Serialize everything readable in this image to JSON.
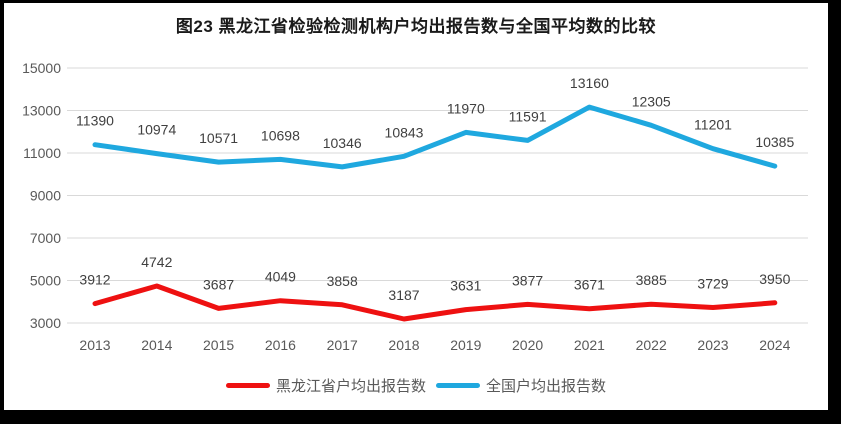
{
  "chart_data": {
    "type": "line",
    "title": "图23 黑龙江省检验检测机构户均出报告数与全国平均数的比较",
    "categories": [
      "2013",
      "2014",
      "2015",
      "2016",
      "2017",
      "2018",
      "2019",
      "2020",
      "2021",
      "2022",
      "2023",
      "2024"
    ],
    "series": [
      {
        "name": "黑龙江省户均出报告数",
        "color": "#EE1111",
        "values": [
          3912,
          4742,
          3687,
          4049,
          3858,
          3187,
          3631,
          3877,
          3671,
          3885,
          3729,
          3950
        ]
      },
      {
        "name": "全国户均出报告数",
        "color": "#1FA8DF",
        "values": [
          11390,
          10974,
          10571,
          10698,
          10346,
          10843,
          11970,
          11591,
          13160,
          12305,
          11201,
          10385
        ]
      }
    ],
    "ylim": [
      3000,
      15000
    ],
    "ytick_interval": 2000,
    "yticks": [
      "15000",
      "13000",
      "11000",
      "9000",
      "7000",
      "5000",
      "3000"
    ],
    "xlabel": "",
    "ylabel": "",
    "grid": true,
    "legend_position": "bottom",
    "data_labels": true,
    "colors": {
      "gridline": "#D9D9D9",
      "tick_text": "#595959",
      "data_label_text": "#404040",
      "title_text": "#1A1A1A",
      "background": "#FFFFFF",
      "frame": "#000000"
    }
  }
}
